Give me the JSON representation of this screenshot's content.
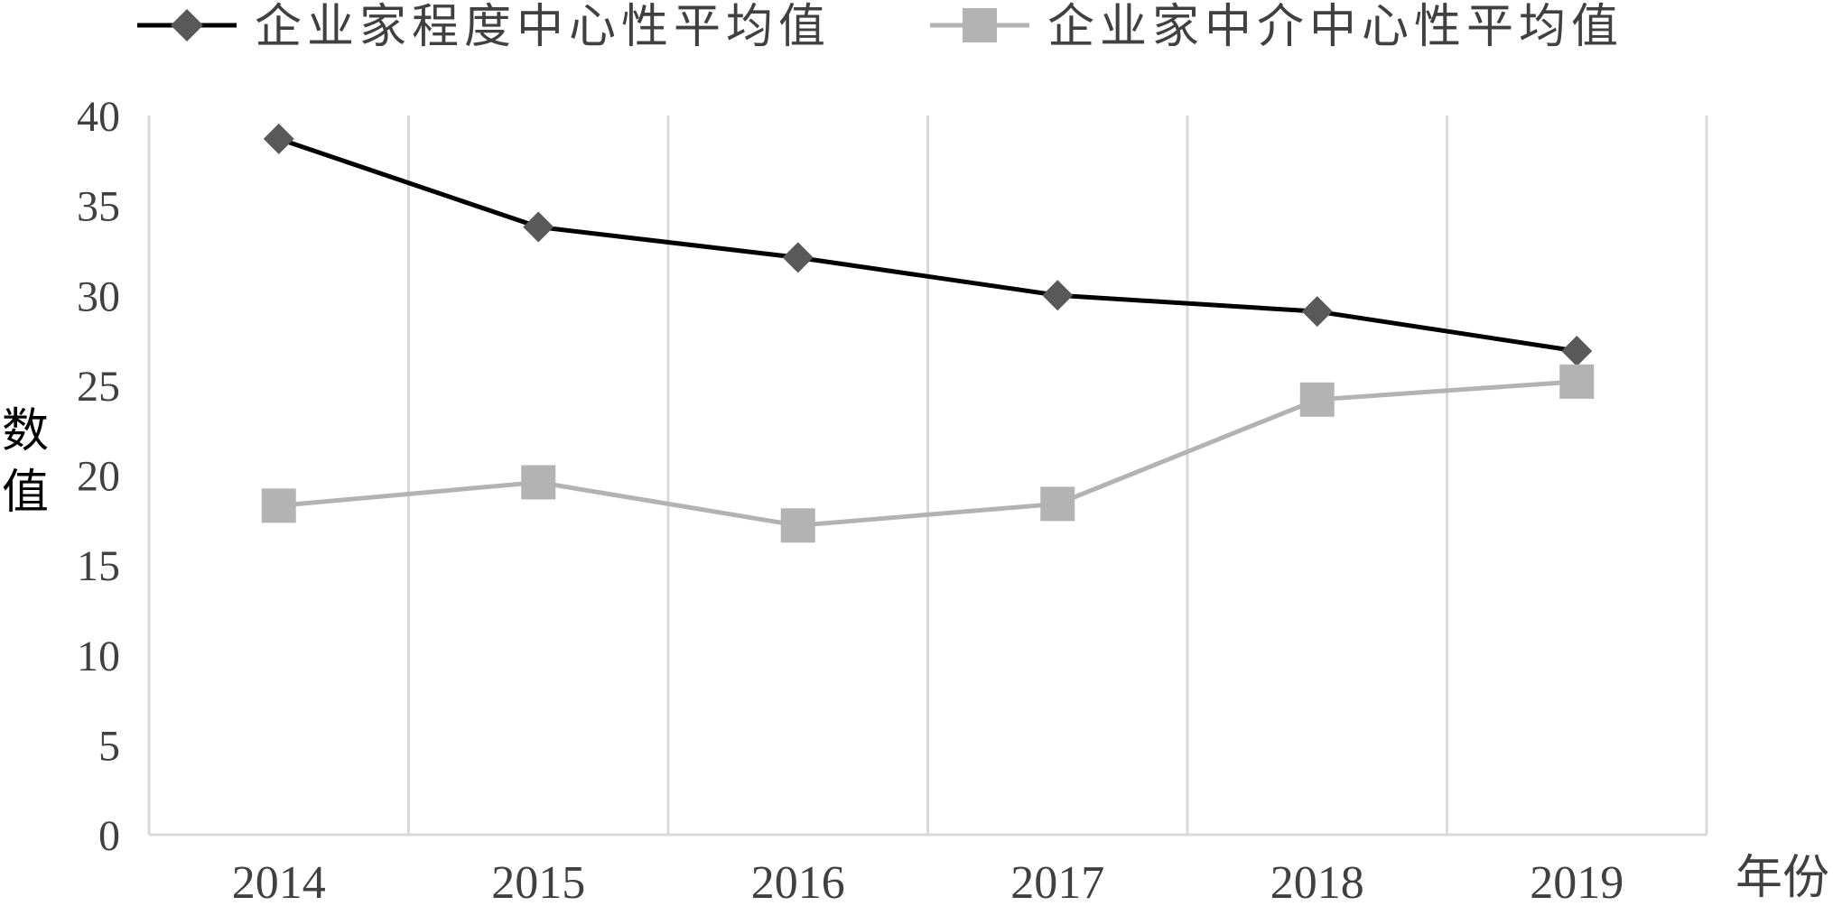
{
  "chart_data": {
    "type": "line",
    "title": "",
    "xlabel": "年份",
    "ylabel": "数值",
    "categories": [
      "2014",
      "2015",
      "2016",
      "2017",
      "2018",
      "2019"
    ],
    "ylim": [
      0,
      40
    ],
    "yticks": [
      0,
      5,
      10,
      15,
      20,
      25,
      30,
      35,
      40
    ],
    "grid": "vertical",
    "legend_position": "top",
    "series": [
      {
        "name": "企业家程度中心性平均值",
        "values": [
          38.7,
          33.8,
          32.1,
          30.0,
          29.1,
          26.9
        ],
        "color": "#000000",
        "marker": "diamond",
        "marker_color": "#595959"
      },
      {
        "name": "企业家中介中心性平均值",
        "values": [
          18.3,
          19.6,
          17.2,
          18.4,
          24.2,
          25.2
        ],
        "color": "#b3b3b3",
        "marker": "square",
        "marker_color": "#b3b3b3"
      }
    ]
  }
}
